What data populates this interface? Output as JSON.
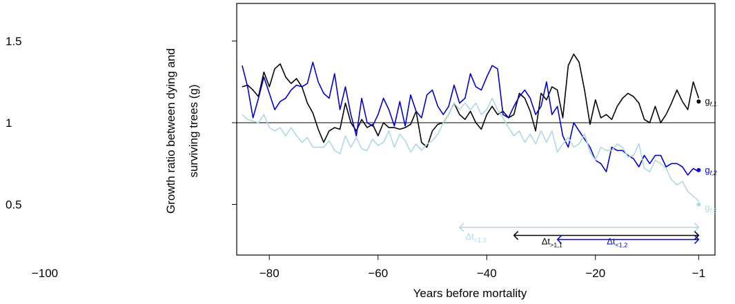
{
  "chart_data": {
    "type": "line",
    "xlabel": "Years before mortality",
    "ylabel_lines": [
      "Growth ratio between dying and",
      "surviving trees (g)"
    ],
    "xlim": [
      -86,
      2
    ],
    "ylim": [
      0.19,
      1.73
    ],
    "x_ticks": [
      -100,
      -80,
      -60,
      -40,
      -20,
      -1
    ],
    "x_tick_labels": [
      "−100",
      "−80",
      "−60",
      "−40",
      "−20",
      "−1"
    ],
    "y_ticks": [
      0.5,
      1,
      1.5
    ],
    "y_tick_labels": [
      "0.5",
      "1",
      "1.5"
    ],
    "reference_line": 1,
    "series": [
      {
        "name": "g",
        "subscript": "f,1",
        "color": "#000000",
        "x": [
          -85,
          -84,
          -83,
          -82,
          -81,
          -80,
          -79,
          -78,
          -77,
          -76,
          -75,
          -74,
          -73,
          -72,
          -71,
          -70,
          -69,
          -68,
          -67,
          -66,
          -65,
          -64,
          -63,
          -62,
          -61,
          -60,
          -59,
          -58,
          -57,
          -56,
          -55,
          -54,
          -53,
          -52,
          -51,
          -50,
          -49,
          -48,
          -47,
          -46,
          -45,
          -44,
          -43,
          -42,
          -41,
          -40,
          -39,
          -38,
          -37,
          -36,
          -35,
          -34,
          -33,
          -32,
          -31,
          -30,
          -29,
          -28,
          -27,
          -26,
          -25,
          -24,
          -23,
          -22,
          -21,
          -20,
          -19,
          -18,
          -17,
          -16,
          -15,
          -14,
          -13,
          -12,
          -11,
          -10,
          -9,
          -8,
          -7,
          -6,
          -5,
          -4,
          -3,
          -2,
          -1
        ],
        "y": [
          1.22,
          1.23,
          1.2,
          1.16,
          1.31,
          1.22,
          1.33,
          1.36,
          1.28,
          1.24,
          1.27,
          1.22,
          1.12,
          1.06,
          0.96,
          0.88,
          0.95,
          0.97,
          0.96,
          1.12,
          1.0,
          0.95,
          1.02,
          0.97,
          0.99,
          0.92,
          1.0,
          0.97,
          0.97,
          0.96,
          0.97,
          0.99,
          1.07,
          0.88,
          0.85,
          0.95,
          0.99,
          1.0,
          1.05,
          1.12,
          1.05,
          1.02,
          1.07,
          1.0,
          0.96,
          1.05,
          1.1,
          1.05,
          1.07,
          1.03,
          1.05,
          1.18,
          1.15,
          1.07,
          0.95,
          1.18,
          1.14,
          1.22,
          1.2,
          1.03,
          1.35,
          1.42,
          1.37,
          1.2,
          0.99,
          1.14,
          1.03,
          1.05,
          1.02,
          1.1,
          1.15,
          1.18,
          1.16,
          1.12,
          1.02,
          1.0,
          1.1,
          1.0,
          1.05,
          1.12,
          1.2,
          1.13,
          1.08,
          1.25,
          1.15
        ],
        "end_label_y": 1.13,
        "marker_y": 1.13
      },
      {
        "name": "g",
        "subscript": "f,2",
        "color": "#0000cd",
        "x": [
          -85,
          -84,
          -83,
          -82,
          -81,
          -80,
          -79,
          -78,
          -77,
          -76,
          -75,
          -74,
          -73,
          -72,
          -71,
          -70,
          -69,
          -68,
          -67,
          -66,
          -65,
          -64,
          -63,
          -62,
          -61,
          -60,
          -59,
          -58,
          -57,
          -56,
          -55,
          -54,
          -53,
          -52,
          -51,
          -50,
          -49,
          -48,
          -47,
          -46,
          -45,
          -44,
          -43,
          -42,
          -41,
          -40,
          -39,
          -38,
          -37,
          -36,
          -35,
          -34,
          -33,
          -32,
          -31,
          -30,
          -29,
          -28,
          -27,
          -26,
          -25,
          -24,
          -23,
          -22,
          -21,
          -20,
          -19,
          -18,
          -17,
          -16,
          -15,
          -14,
          -13,
          -12,
          -11,
          -10,
          -9,
          -8,
          -7,
          -6,
          -5,
          -4,
          -3,
          -2,
          -1
        ],
        "y": [
          1.35,
          1.22,
          1.03,
          1.15,
          1.28,
          1.18,
          1.08,
          1.13,
          1.15,
          1.2,
          1.23,
          1.22,
          1.24,
          1.37,
          1.25,
          1.18,
          1.15,
          1.3,
          1.08,
          1.22,
          1.05,
          0.92,
          1.15,
          1.0,
          0.98,
          1.05,
          1.15,
          1.08,
          0.98,
          1.13,
          0.98,
          1.17,
          1.07,
          1.03,
          1.17,
          1.2,
          1.1,
          1.05,
          1.1,
          1.23,
          1.12,
          1.15,
          1.3,
          1.22,
          1.2,
          1.28,
          1.35,
          1.33,
          1.05,
          1.03,
          1.1,
          1.16,
          1.2,
          1.15,
          1.05,
          1.1,
          1.25,
          1.05,
          1.1,
          0.92,
          0.85,
          1.0,
          0.95,
          0.9,
          0.85,
          0.77,
          0.75,
          0.7,
          0.85,
          0.83,
          0.83,
          0.8,
          0.78,
          0.73,
          0.8,
          0.75,
          0.8,
          0.8,
          0.73,
          0.75,
          0.75,
          0.73,
          0.68,
          0.72,
          0.7
        ],
        "end_label_y": 0.71,
        "marker_y": 0.71
      },
      {
        "name": "g",
        "subscript": "f,3",
        "color": "#add8e6",
        "x": [
          -85,
          -84,
          -83,
          -82,
          -81,
          -80,
          -79,
          -78,
          -77,
          -76,
          -75,
          -74,
          -73,
          -72,
          -71,
          -70,
          -69,
          -68,
          -67,
          -66,
          -65,
          -64,
          -63,
          -62,
          -61,
          -60,
          -59,
          -58,
          -57,
          -56,
          -55,
          -54,
          -53,
          -52,
          -51,
          -50,
          -49,
          -48,
          -47,
          -46,
          -45,
          -44,
          -43,
          -42,
          -41,
          -40,
          -39,
          -38,
          -37,
          -36,
          -35,
          -34,
          -33,
          -32,
          -31,
          -30,
          -29,
          -28,
          -27,
          -26,
          -25,
          -24,
          -23,
          -22,
          -21,
          -20,
          -19,
          -18,
          -17,
          -16,
          -15,
          -14,
          -13,
          -12,
          -11,
          -10,
          -9,
          -8,
          -7,
          -6,
          -5,
          -4,
          -3,
          -2,
          -1
        ],
        "y": [
          1.05,
          1.02,
          1.01,
          1.0,
          1.05,
          0.97,
          0.95,
          0.97,
          0.92,
          0.97,
          0.92,
          0.88,
          0.91,
          0.85,
          0.85,
          0.85,
          0.89,
          0.83,
          0.81,
          0.92,
          0.85,
          0.91,
          0.84,
          0.83,
          0.9,
          0.86,
          0.88,
          0.95,
          0.85,
          0.93,
          0.89,
          0.82,
          0.87,
          0.83,
          0.87,
          0.89,
          0.93,
          1.0,
          1.05,
          1.12,
          1.08,
          1.12,
          1.08,
          1.12,
          1.05,
          1.08,
          1.15,
          1.08,
          1.03,
          0.97,
          0.92,
          0.95,
          0.88,
          0.93,
          0.87,
          0.95,
          0.88,
          0.95,
          0.82,
          0.87,
          0.91,
          0.85,
          0.87,
          0.93,
          0.82,
          0.77,
          0.85,
          0.83,
          0.83,
          0.87,
          0.85,
          0.79,
          0.8,
          0.87,
          0.72,
          0.7,
          0.77,
          0.75,
          0.72,
          0.65,
          0.62,
          0.64,
          0.58,
          0.55,
          0.52
        ],
        "end_label_y": 0.48,
        "marker_y": 0.5
      }
    ],
    "delta_arrows": [
      {
        "base": "Δt",
        "subscript": "<1,3",
        "from": -45,
        "to": -1,
        "y": 0.36,
        "color": "#add8e6",
        "label_x": -42,
        "label_y": 0.285
      },
      {
        "base": "Δt",
        "subscript": ">1,1",
        "from": -35,
        "to": -1,
        "y": 0.31,
        "color": "#000000",
        "label_x": -28,
        "label_y": 0.255
      },
      {
        "base": "Δt",
        "subscript": "<1,2",
        "from": -27,
        "to": -1,
        "y": 0.285,
        "color": "#0000cd",
        "label_x": -16,
        "label_y": 0.255
      }
    ]
  }
}
